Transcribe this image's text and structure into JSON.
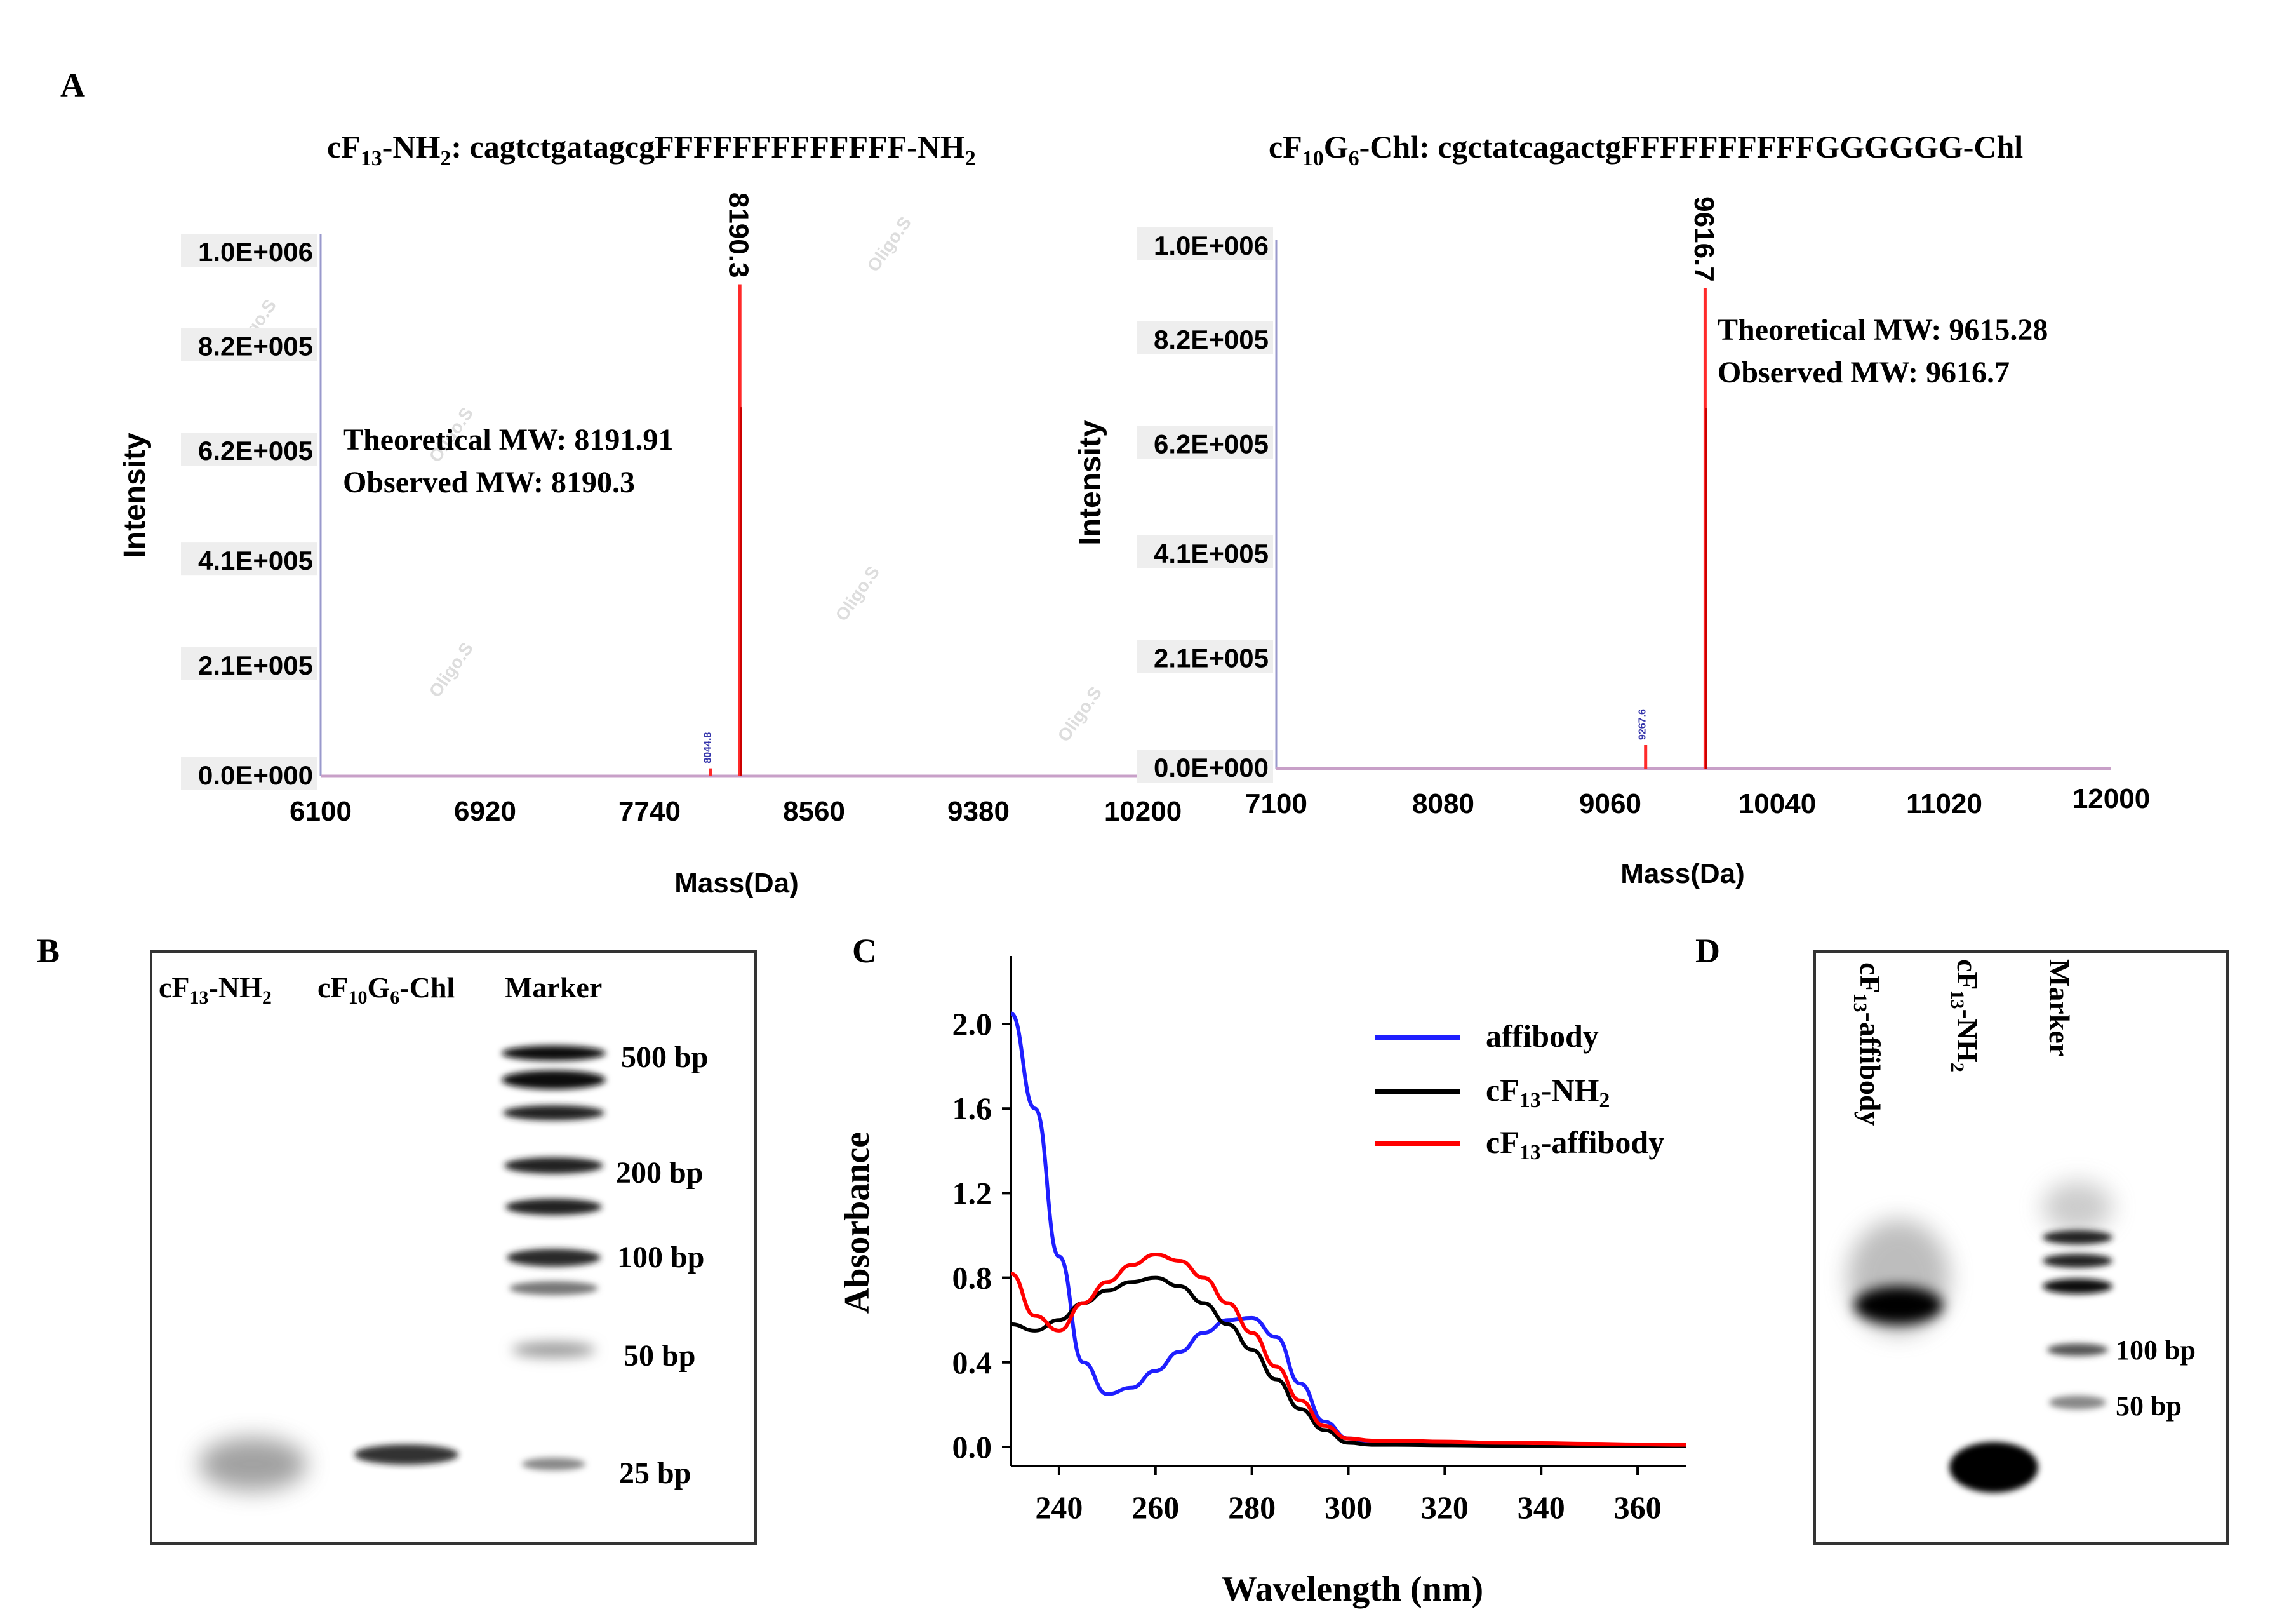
{
  "figure": {
    "labels": {
      "A": "A",
      "B": "B",
      "C": "C",
      "D": "D"
    }
  },
  "panelA": {
    "left": {
      "title": {
        "prefix": "cF",
        "sub1": "13",
        "mid": "-NH",
        "sub2": "2",
        "suffix": ": cagtctgatagcgFFFFFFFFFFFFF-NH",
        "sub3": "2"
      },
      "peak_label": "8190.3",
      "minor_peak_label": "8044.8",
      "theoretical": "Theoretical MW: 8191.91",
      "observed": "Observed MW: 8190.3",
      "xlabel": "Mass(Da)",
      "ylabel": "Intensity",
      "xticks": [
        "6100",
        "6920",
        "7740",
        "8560",
        "9380",
        "10200"
      ],
      "yticks": [
        "0.0E+000",
        "2.1E+005",
        "4.1E+005",
        "6.2E+005",
        "8.2E+005",
        "1.0E+006"
      ],
      "watermark": "Oligo.S"
    },
    "right": {
      "title": {
        "prefix": "cF",
        "sub1": "10",
        "mid": "G",
        "sub2": "6",
        "suffix": "-Chl: cgctatcagactgFFFFFFFFFFGGGGGG-Chl"
      },
      "peak_label": "9616.7",
      "minor_peak_label": "9267.6",
      "theoretical": "Theoretical MW: 9615.28",
      "observed": "Observed MW: 9616.7",
      "xlabel": "Mass(Da)",
      "ylabel": "Intensity",
      "xticks": [
        "7100",
        "8080",
        "9060",
        "10040",
        "11020",
        "12000"
      ],
      "yticks": [
        "0.0E+000",
        "2.1E+005",
        "4.1E+005",
        "6.2E+005",
        "8.2E+005",
        "1.0E+006"
      ]
    }
  },
  "panelB": {
    "lanes": {
      "l1_prefix": "cF",
      "l1_sub": "13",
      "l1_suffix": "-NH",
      "l1_sub2": "2",
      "l2_prefix": "cF",
      "l2_sub": "10",
      "l2_mid": "G",
      "l2_sub2": "6",
      "l2_suffix": "-Chl",
      "l3": "Marker"
    },
    "markers": [
      "500 bp",
      "200 bp",
      "100 bp",
      "50 bp",
      "25 bp"
    ]
  },
  "panelC": {
    "ylabel": "Absorbance",
    "xlabel": "Wavelength (nm)",
    "legend": {
      "affibody": "affibody",
      "nh2_prefix": "cF",
      "nh2_sub": "13",
      "nh2_mid": "-NH",
      "nh2_sub2": "2",
      "conj_prefix": "cF",
      "conj_sub": "13",
      "conj_suffix": "-affibody"
    },
    "xticks": [
      "240",
      "260",
      "280",
      "300",
      "320",
      "340",
      "360"
    ],
    "yticks": [
      "0.0",
      "0.4",
      "0.8",
      "1.2",
      "1.6",
      "2.0"
    ]
  },
  "panelD": {
    "lanes": {
      "l1_prefix": "cF",
      "l1_sub": "13",
      "l1_suffix": "-affibody",
      "l2_prefix": "cF",
      "l2_sub": "13",
      "l2_mid": "-NH",
      "l2_sub2": "2",
      "l3": "Marker"
    },
    "markers": [
      "100 bp",
      "50 bp"
    ]
  },
  "chart_data": [
    {
      "type": "line",
      "title": "cF13-NH2: cagtctgatagcgFFFFFFFFFFFFF-NH2",
      "xlabel": "Mass(Da)",
      "ylabel": "Intensity",
      "xlim": [
        6100,
        10200
      ],
      "ylim": [
        0,
        1000000
      ],
      "peaks": [
        {
          "x": 8044.8,
          "y": 15000
        },
        {
          "x": 8190.3,
          "y": 940000
        }
      ],
      "annotations": [
        "Theoretical MW: 8191.91",
        "Observed MW: 8190.3"
      ]
    },
    {
      "type": "line",
      "title": "cF10G6-Chl: cgctatcagactgFFFFFFFFFFGGGGGG-Chl",
      "xlabel": "Mass(Da)",
      "ylabel": "Intensity",
      "xlim": [
        7100,
        12000
      ],
      "ylim": [
        0,
        1000000
      ],
      "peaks": [
        {
          "x": 9267.6,
          "y": 45000
        },
        {
          "x": 9616.7,
          "y": 920000
        }
      ],
      "annotations": [
        "Theoretical MW: 9615.28",
        "Observed MW: 9616.7"
      ]
    },
    {
      "type": "line",
      "title": "",
      "xlabel": "Wavelength (nm)",
      "ylabel": "Absorbance",
      "xlim": [
        230,
        370
      ],
      "ylim": [
        0,
        2.2
      ],
      "x": [
        230,
        235,
        240,
        245,
        250,
        255,
        260,
        265,
        270,
        275,
        280,
        285,
        290,
        295,
        300,
        305,
        310,
        320,
        330,
        340,
        350,
        360,
        370
      ],
      "series": [
        {
          "name": "affibody",
          "color": "#1f1fff",
          "values": [
            2.05,
            1.6,
            0.9,
            0.4,
            0.25,
            0.28,
            0.36,
            0.45,
            0.54,
            0.6,
            0.61,
            0.52,
            0.3,
            0.12,
            0.04,
            0.02,
            0.015,
            0.012,
            0.01,
            0.01,
            0.008,
            0.006,
            0.005
          ]
        },
        {
          "name": "cF13-NH2",
          "color": "#000000",
          "values": [
            0.58,
            0.55,
            0.6,
            0.68,
            0.74,
            0.78,
            0.8,
            0.76,
            0.68,
            0.58,
            0.46,
            0.32,
            0.18,
            0.08,
            0.02,
            0.01,
            0.01,
            0.008,
            0.006,
            0.005,
            0.004,
            0.003,
            0.003
          ]
        },
        {
          "name": "cF13-affibody",
          "color": "#ff0000",
          "values": [
            0.82,
            0.62,
            0.55,
            0.68,
            0.78,
            0.86,
            0.91,
            0.88,
            0.8,
            0.68,
            0.54,
            0.38,
            0.22,
            0.1,
            0.04,
            0.03,
            0.03,
            0.025,
            0.02,
            0.018,
            0.015,
            0.012,
            0.01
          ]
        }
      ]
    }
  ]
}
